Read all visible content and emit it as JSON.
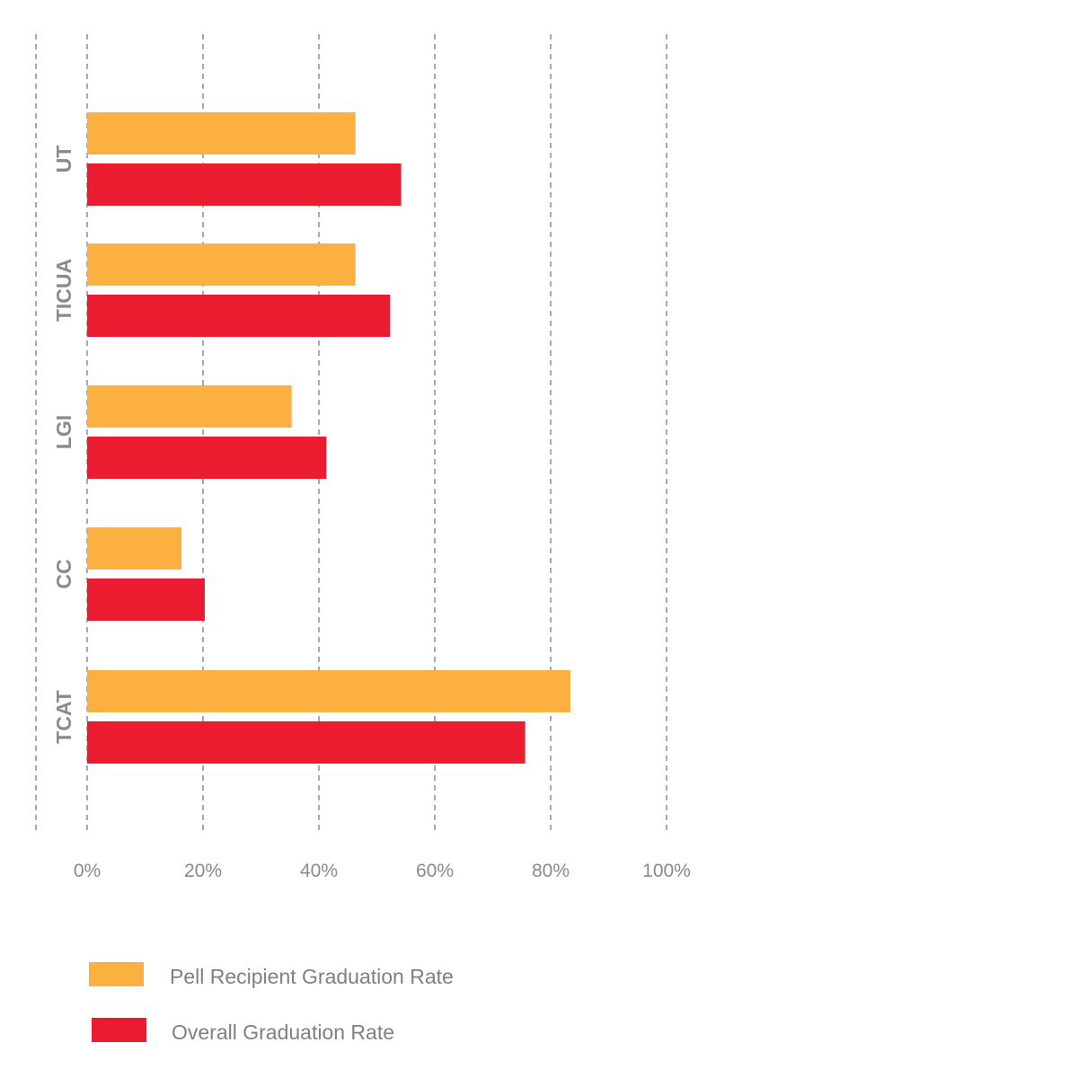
{
  "chart_data": {
    "type": "bar",
    "orientation": "horizontal",
    "categories": [
      "UT",
      "TICUA",
      "LGI",
      "CC",
      "TCAT"
    ],
    "series": [
      {
        "name": "Pell Recipient Graduation Rate",
        "color": "#FBB040",
        "values": [
          46.3,
          46.3,
          35.3,
          16.3,
          83.4
        ]
      },
      {
        "name": "Overall Graduation Rate",
        "color": "#EB1C2F",
        "values": [
          54.2,
          52.3,
          41.3,
          20.3,
          75.6
        ]
      }
    ],
    "x_ticks": [
      "0%",
      "20%",
      "40%",
      "60%",
      "80%",
      "100%"
    ],
    "xlim": [
      0,
      100
    ],
    "grid": true,
    "grid_style": "dashed",
    "legend_position": "bottom-left",
    "title": "",
    "xlabel": "",
    "ylabel": ""
  }
}
